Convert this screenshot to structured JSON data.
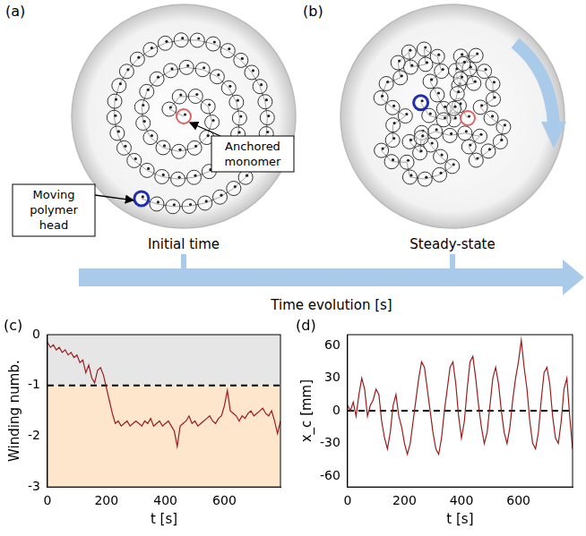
{
  "diagram": {
    "panel_a": {
      "letter": "(a)",
      "caption": "Initial time",
      "head_label": "Moving polymer head",
      "anchor_label": "Anchored monomer"
    },
    "panel_b": {
      "letter": "(b)",
      "caption": "Steady-state"
    },
    "time_axis": {
      "label": "Time evolution [s]"
    }
  },
  "chart_data": [
    {
      "panel": "(c)",
      "type": "line",
      "x_label": "t [s]",
      "y_label": "Winding numb.",
      "x": [
        0,
        10,
        20,
        30,
        40,
        50,
        60,
        70,
        80,
        90,
        100,
        110,
        120,
        130,
        140,
        150,
        160,
        170,
        180,
        190,
        200,
        210,
        220,
        230,
        240,
        250,
        260,
        270,
        280,
        290,
        300,
        310,
        320,
        330,
        340,
        350,
        360,
        370,
        380,
        390,
        400,
        410,
        420,
        430,
        440,
        450,
        460,
        470,
        480,
        490,
        500,
        510,
        520,
        530,
        540,
        550,
        560,
        570,
        580,
        590,
        600,
        610,
        620,
        630,
        640,
        650,
        660,
        670,
        680,
        690,
        700,
        710,
        720,
        730,
        740,
        750,
        760,
        770,
        780,
        790
      ],
      "series": [
        {
          "color": "#9b1c1c",
          "values": [
            -0.15,
            -0.25,
            -0.2,
            -0.3,
            -0.25,
            -0.35,
            -0.3,
            -0.4,
            -0.35,
            -0.45,
            -0.4,
            -0.55,
            -0.5,
            -0.75,
            -0.6,
            -0.85,
            -0.95,
            -0.7,
            -0.65,
            -0.8,
            -1.05,
            -1.3,
            -1.55,
            -1.75,
            -1.7,
            -1.8,
            -1.75,
            -1.7,
            -1.8,
            -1.75,
            -1.7,
            -1.75,
            -1.8,
            -1.7,
            -1.75,
            -1.65,
            -1.8,
            -1.75,
            -1.7,
            -1.8,
            -1.75,
            -1.7,
            -1.8,
            -1.9,
            -2.2,
            -1.8,
            -1.75,
            -1.7,
            -1.6,
            -1.75,
            -1.7,
            -1.8,
            -1.75,
            -1.7,
            -1.65,
            -1.6,
            -1.7,
            -1.75,
            -1.65,
            -1.6,
            -1.4,
            -1.1,
            -1.5,
            -1.55,
            -1.6,
            -1.7,
            -1.6,
            -1.65,
            -1.55,
            -1.5,
            -1.6,
            -1.55,
            -1.5,
            -1.45,
            -1.55,
            -1.6,
            -1.5,
            -1.7,
            -1.95,
            -1.7
          ]
        }
      ],
      "xlim": [
        0,
        790
      ],
      "xticks": [
        0,
        200,
        400,
        600
      ],
      "ylim": [
        -3,
        0
      ],
      "yticks": [
        -3,
        -2,
        -1,
        0
      ],
      "reference_line": -1,
      "line_style": "dashed",
      "bands": [
        {
          "from": -1,
          "to": 0,
          "color": "#e6e6e6"
        },
        {
          "from": -3,
          "to": -1,
          "color": "#fde6cc"
        }
      ],
      "grid": false
    },
    {
      "panel": "(d)",
      "type": "line",
      "x_label": "t [s]",
      "y_label": "x_c [mm]",
      "x": [
        0,
        10,
        20,
        30,
        40,
        50,
        60,
        70,
        80,
        90,
        100,
        110,
        120,
        130,
        140,
        150,
        160,
        170,
        180,
        190,
        200,
        210,
        220,
        230,
        240,
        250,
        260,
        270,
        280,
        290,
        300,
        310,
        320,
        330,
        340,
        350,
        360,
        370,
        380,
        390,
        400,
        410,
        420,
        430,
        440,
        450,
        460,
        470,
        480,
        490,
        500,
        510,
        520,
        530,
        540,
        550,
        560,
        570,
        580,
        590,
        600,
        610,
        620,
        630,
        640,
        650,
        660,
        670,
        680,
        690,
        700,
        710,
        720,
        730,
        740,
        750,
        760,
        770,
        780,
        790
      ],
      "series": [
        {
          "color": "#9b1c1c",
          "values": [
            5,
            0,
            8,
            -5,
            15,
            30,
            20,
            -5,
            5,
            10,
            20,
            15,
            -10,
            -25,
            -35,
            -20,
            5,
            15,
            -5,
            -15,
            -30,
            -40,
            -30,
            -10,
            10,
            30,
            45,
            40,
            20,
            0,
            -20,
            -35,
            -40,
            -25,
            0,
            20,
            40,
            45,
            25,
            -5,
            -25,
            -10,
            20,
            45,
            50,
            30,
            5,
            -15,
            -30,
            -20,
            5,
            30,
            40,
            25,
            0,
            -20,
            -30,
            -15,
            10,
            30,
            45,
            65,
            40,
            20,
            -10,
            -30,
            -35,
            -20,
            10,
            35,
            40,
            25,
            -5,
            -25,
            -30,
            -10,
            20,
            30,
            -5,
            -35
          ]
        }
      ],
      "xlim": [
        0,
        790
      ],
      "xticks": [
        0,
        200,
        400,
        600
      ],
      "ylim": [
        -70,
        70
      ],
      "yticks": [
        -60,
        -30,
        0,
        30,
        60
      ],
      "reference_line": 0,
      "line_style": "dashed",
      "grid": false
    }
  ]
}
